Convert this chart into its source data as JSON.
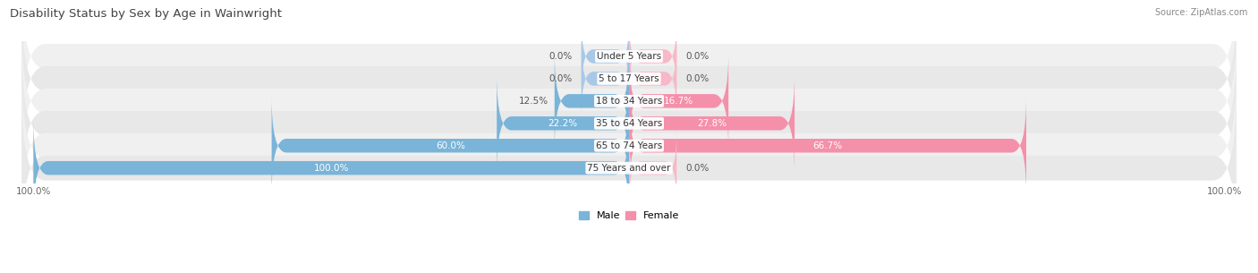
{
  "title": "Disability Status by Sex by Age in Wainwright",
  "source": "Source: ZipAtlas.com",
  "categories": [
    "Under 5 Years",
    "5 to 17 Years",
    "18 to 34 Years",
    "35 to 64 Years",
    "65 to 74 Years",
    "75 Years and over"
  ],
  "male_values": [
    0.0,
    0.0,
    12.5,
    22.2,
    60.0,
    100.0
  ],
  "female_values": [
    0.0,
    0.0,
    16.7,
    27.8,
    66.7,
    0.0
  ],
  "male_color": "#7ab4d8",
  "female_color": "#f490aa",
  "bar_bg_colors": [
    "#f0f0f0",
    "#e8e8e8",
    "#f0f0f0",
    "#e8e8e8",
    "#f0f0f0",
    "#e8e8e8"
  ],
  "bar_height": 0.62,
  "max_value": 100.0,
  "figsize": [
    14.06,
    3.05
  ],
  "title_fontsize": 9.5,
  "label_fontsize": 7.5,
  "value_fontsize": 7.5,
  "source_fontsize": 7,
  "legend_fontsize": 8,
  "title_color": "#444444",
  "category_fontsize": 7.5,
  "zero_bar_width": 8.0,
  "zero_bar_male_color": "#a8c8e8",
  "zero_bar_female_color": "#f8b8c8"
}
